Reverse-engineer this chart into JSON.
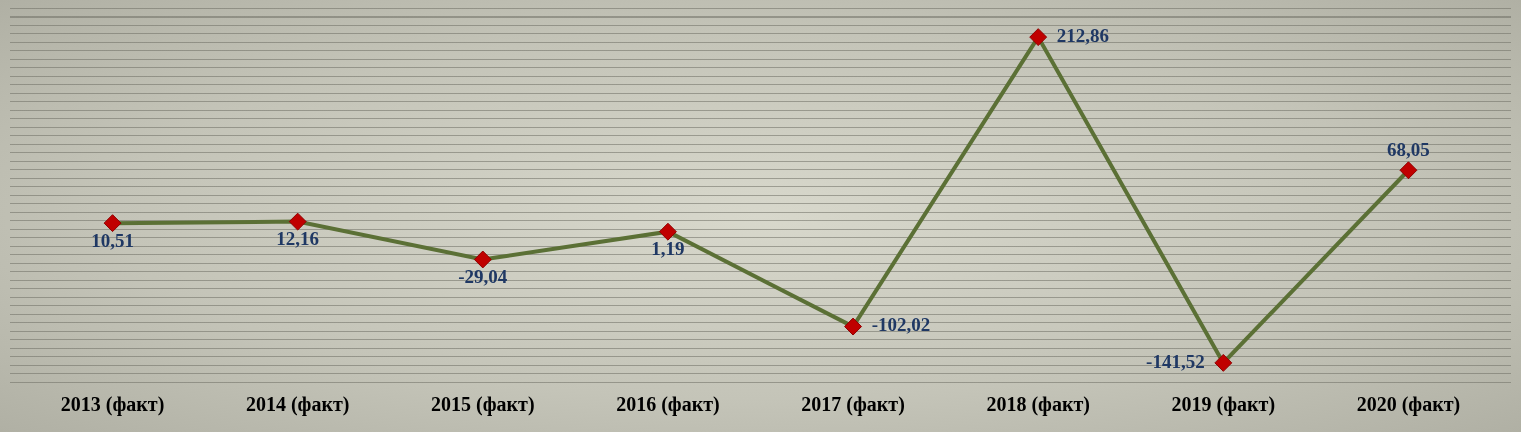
{
  "chart_data": {
    "type": "line",
    "categories": [
      "2013 (факт)",
      "2014 (факт)",
      "2015 (факт)",
      "2016 (факт)",
      "2017 (факт)",
      "2018 (факт)",
      "2019 (факт)",
      "2020 (факт)"
    ],
    "series": [
      {
        "color": "#5b7035",
        "values": [
          10.51,
          12.16,
          -29.04,
          1.19,
          -102.02,
          212.86,
          -141.52,
          68.05
        ],
        "value_labels": [
          "10,51",
          "12,16",
          "-29,04",
          "1,19",
          "-102,02",
          "212,86",
          "-141,52",
          "68,05"
        ]
      }
    ],
    "marker": "diamond",
    "line_style": "solid",
    "legend": false,
    "tick_labels": "x"
  }
}
